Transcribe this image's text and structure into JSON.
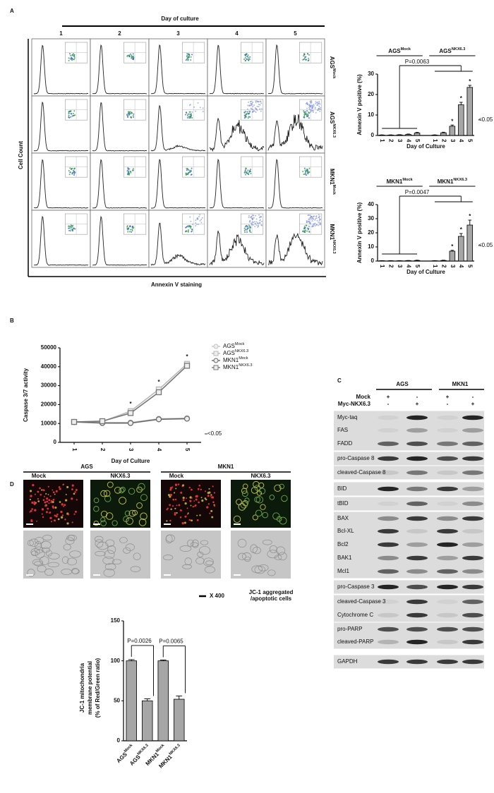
{
  "panel_labels": [
    "A",
    "B",
    "C",
    "D"
  ],
  "flow": {
    "title": "Day of culture",
    "days": [
      "1",
      "2",
      "3",
      "4",
      "5"
    ],
    "rows": [
      {
        "name": "AGS",
        "sup": "Mock"
      },
      {
        "name": "AGS",
        "sup": "NKX6.3"
      },
      {
        "name": "MKN1",
        "sup": "Mock"
      },
      {
        "name": "MKN1",
        "sup": "NKX6.3"
      }
    ],
    "ylabel": "Cell Count",
    "xlabel": "Annexin V staining"
  },
  "chart_data": [
    {
      "type": "bar",
      "groups": [
        {
          "name": "AGS",
          "sup": "Mock"
        },
        {
          "name": "AGS",
          "sup": "NKX6.3"
        }
      ],
      "categories": [
        "1",
        "2",
        "3",
        "4",
        "5",
        "1",
        "2",
        "3",
        "4",
        "5"
      ],
      "values": [
        0.2,
        0.2,
        0.3,
        0.5,
        1.2,
        0.2,
        1.3,
        4.5,
        15,
        23.5
      ],
      "errors": [
        0.1,
        0.1,
        0.1,
        0.2,
        0.3,
        0.1,
        0.3,
        0.6,
        1.2,
        1
      ],
      "significance": [
        null,
        null,
        null,
        null,
        null,
        null,
        null,
        "*",
        "*",
        "*"
      ],
      "ylabel": "Annexin V positive (%)",
      "xlabel": "Day of Culture",
      "p_value": "P=0.0063",
      "note": "<0.05",
      "ylim": [
        0,
        30
      ],
      "yticks": [
        0,
        10,
        20,
        30
      ],
      "color": "#a6a6a6"
    },
    {
      "type": "bar",
      "groups": [
        {
          "name": "MKN1",
          "sup": "Mock"
        },
        {
          "name": "MKN1",
          "sup": "NKX6.3"
        }
      ],
      "categories": [
        "1",
        "2",
        "3",
        "4",
        "5",
        "1",
        "2",
        "3",
        "4",
        "5"
      ],
      "values": [
        0.2,
        0.2,
        0.2,
        0.3,
        0.4,
        0.2,
        0.4,
        7,
        17.5,
        25.5
      ],
      "errors": [
        0.1,
        0.1,
        0.1,
        0.1,
        0.2,
        0.1,
        0.2,
        0.6,
        2,
        3.5
      ],
      "significance": [
        null,
        null,
        null,
        null,
        null,
        null,
        null,
        "*",
        "*",
        "*"
      ],
      "ylabel": "Annexin V positive (%)",
      "xlabel": "Day of Culture",
      "p_value": "P=0.0047",
      "note": "<0.05",
      "ylim": [
        0,
        40
      ],
      "yticks": [
        0,
        10,
        20,
        30,
        40
      ],
      "color": "#a6a6a6"
    },
    {
      "type": "line",
      "x": [
        1,
        2,
        3,
        4,
        5
      ],
      "xlim": [
        0.5,
        5.5
      ],
      "xticks": [
        1,
        2,
        3,
        4,
        5
      ],
      "series": [
        {
          "name": "AGS",
          "sup": "Mock",
          "color": "#c4c4c4",
          "marker": "circle",
          "values": [
            10800,
            10500,
            10500,
            12500,
            12800
          ]
        },
        {
          "name": "AGS",
          "sup": "NKX6.3",
          "color": "#b8b8b8",
          "marker": "square",
          "values": [
            10800,
            11000,
            16500,
            28000,
            41500
          ]
        },
        {
          "name": "MKN1",
          "sup": "Mock",
          "color": "#6a6a6a",
          "marker": "circle",
          "values": [
            10800,
            10200,
            10200,
            12200,
            12500
          ]
        },
        {
          "name": "MKN1",
          "sup": "NKX6.3",
          "color": "#777777",
          "marker": "square",
          "values": [
            10800,
            11200,
            15500,
            26500,
            40500
          ]
        }
      ],
      "significance": [
        null,
        null,
        "*",
        "*",
        "*"
      ],
      "ylabel": "Caspase 3/7 activity",
      "xlabel": "Day of Culture",
      "note": "<0.05",
      "ylim": [
        0,
        50000
      ],
      "yticks": [
        0,
        10000,
        20000,
        30000,
        40000,
        50000
      ]
    },
    {
      "type": "bar",
      "categories": [
        {
          "name": "AGS",
          "sup": "Mock"
        },
        {
          "name": "AGS",
          "sup": "NKX6.3"
        },
        {
          "name": "MKN1",
          "sup": "Mock"
        },
        {
          "name": "MKN1",
          "sup": "NKX6.3"
        }
      ],
      "values": [
        100,
        50,
        100,
        52
      ],
      "errors": [
        1.5,
        2.5,
        1,
        4
      ],
      "ylabel": [
        "JC-1 mitochondria",
        "membrane potential",
        "(% of Red/Green ratio)"
      ],
      "p_values": [
        "P=0.0026",
        "P=0.0065"
      ],
      "ylim": [
        0,
        150
      ],
      "yticks": [
        0,
        50,
        100,
        150
      ],
      "color": "#a6a6a6"
    }
  ],
  "blot": {
    "groups": [
      "AGS",
      "MKN1"
    ],
    "conditions": [
      {
        "name": "Mock",
        "signs": [
          "+",
          "-",
          "+",
          "-"
        ]
      },
      {
        "name": "Myc-NKX6.3",
        "signs": [
          "-",
          "+",
          "-",
          "+"
        ]
      }
    ],
    "proteins": [
      "Myc-taq",
      "FAS",
      "FADD",
      "pro-Caspase 8",
      "cleaved-Caspase 8",
      "BID",
      "tBID",
      "BAX",
      "Bcl-XL",
      "Bcl2",
      "BAK1",
      "Mcl1",
      "pro-Caspase 3",
      "cleaved-Caspase 3",
      "Cytochrome C",
      "pro-PARP",
      "cleaved-PARP",
      "GAPDH"
    ]
  },
  "microscopy": {
    "groups": [
      "AGS",
      "MKN1"
    ],
    "conditions": [
      "Mock",
      "NKX6.3"
    ],
    "scale": "X 400",
    "legend": [
      "JC-1 aggregated",
      "/apoptotic cells"
    ]
  }
}
